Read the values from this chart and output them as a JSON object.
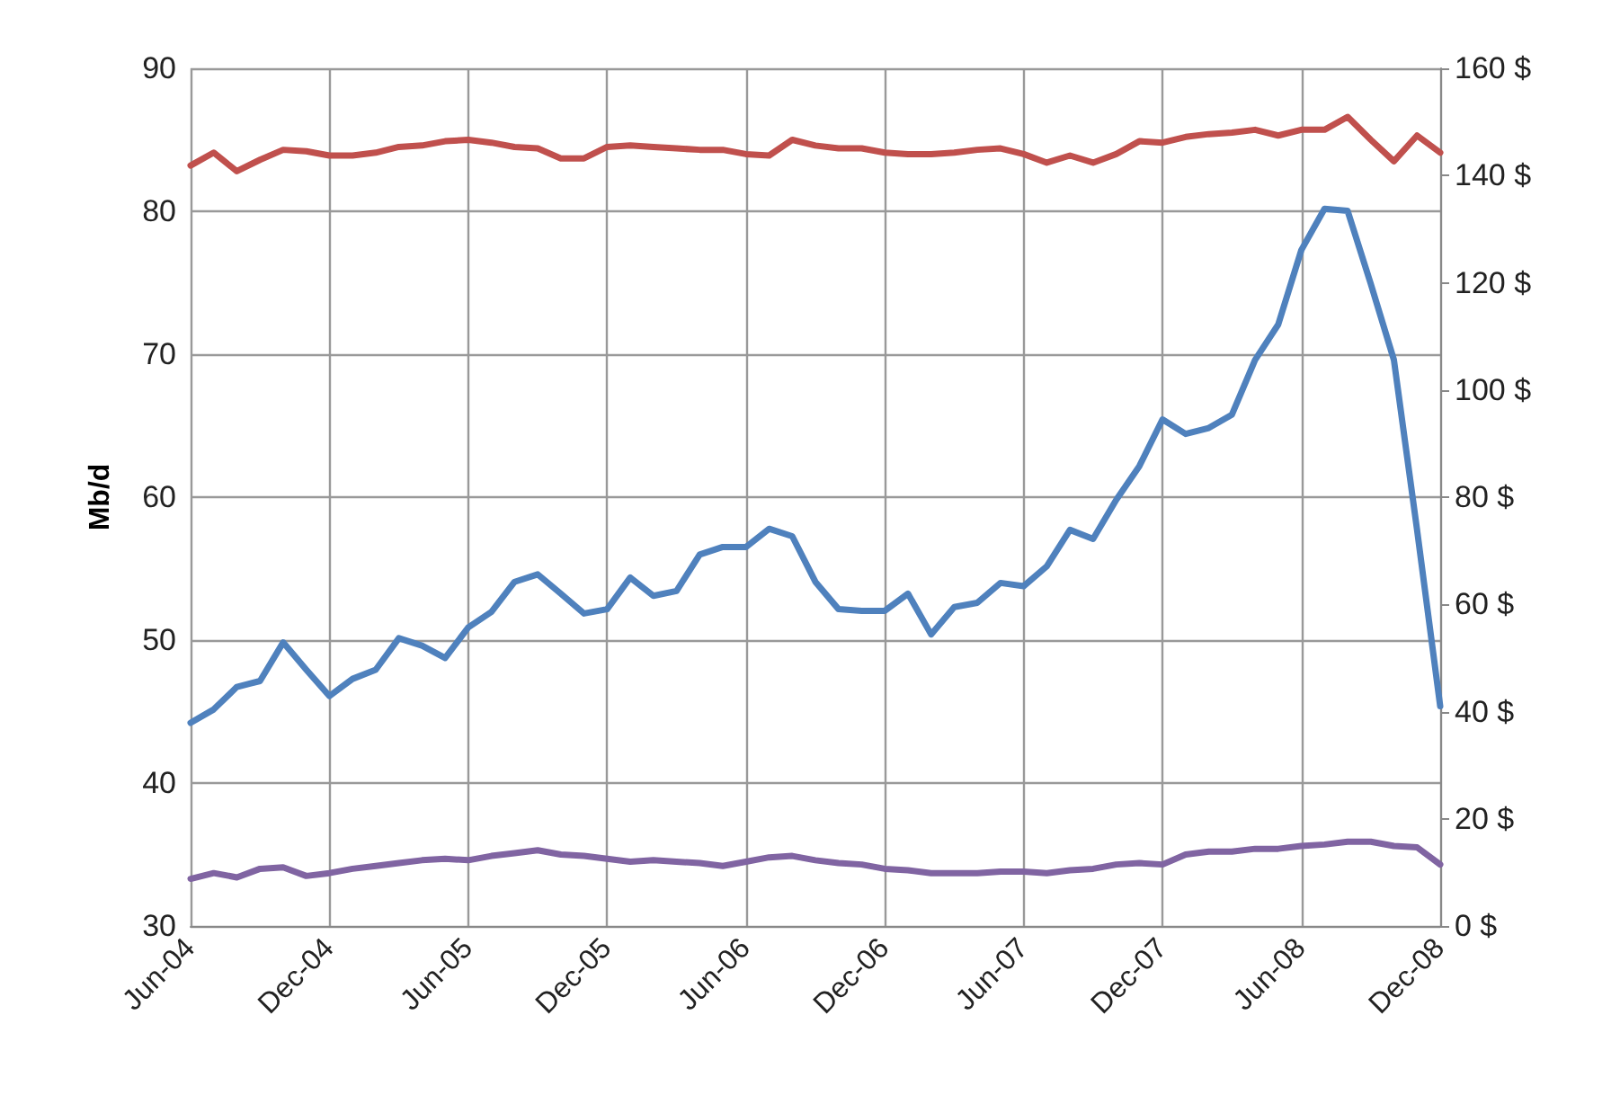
{
  "chart_data": {
    "type": "line",
    "categories": [
      "Jun-04",
      null,
      null,
      null,
      null,
      null,
      "Dec-04",
      null,
      null,
      null,
      null,
      null,
      "Jun-05",
      null,
      null,
      null,
      null,
      null,
      "Dec-05",
      null,
      null,
      null,
      null,
      null,
      "Jun-06",
      null,
      null,
      null,
      null,
      null,
      "Dec-06",
      null,
      null,
      null,
      null,
      null,
      "Jun-07",
      null,
      null,
      null,
      null,
      null,
      "Dec-07",
      null,
      null,
      null,
      null,
      null,
      "Jun-08",
      null,
      null,
      null,
      null,
      null,
      "Dec-08"
    ],
    "ylabel": "Mb/d",
    "ylim": [
      30,
      90
    ],
    "yticks": [
      30,
      40,
      50,
      60,
      70,
      80,
      90
    ],
    "y2lim": [
      0,
      160
    ],
    "y2ticks": [
      {
        "value": 0,
        "label": "0 $"
      },
      {
        "value": 20,
        "label": "20 $"
      },
      {
        "value": 40,
        "label": "40 $"
      },
      {
        "value": 60,
        "label": "60 $"
      },
      {
        "value": 80,
        "label": "80 $"
      },
      {
        "value": 100,
        "label": "100 $"
      },
      {
        "value": 120,
        "label": "120 $"
      },
      {
        "value": 140,
        "label": "140 $"
      },
      {
        "value": 160,
        "label": "160 $"
      }
    ],
    "grid": true,
    "marker": "none",
    "line_style": "solid",
    "series": [
      {
        "color": "#c0504d",
        "values": [
          83.2,
          84.1,
          82.8,
          83.6,
          84.3,
          84.2,
          83.9,
          83.9,
          84.1,
          84.5,
          84.6,
          84.9,
          85.0,
          84.8,
          84.5,
          84.4,
          83.7,
          83.7,
          84.5,
          84.6,
          84.5,
          84.4,
          84.3,
          84.3,
          84.0,
          83.9,
          85.0,
          84.6,
          84.4,
          84.4,
          84.1,
          84.0,
          84.0,
          84.1,
          84.3,
          84.4,
          84.0,
          83.4,
          83.9,
          83.4,
          84.0,
          84.9,
          84.8,
          85.2,
          85.4,
          85.5,
          85.7,
          85.3,
          85.7,
          85.7,
          86.6,
          85.0,
          83.5,
          85.3,
          84.1
        ]
      },
      {
        "color": "#4f81bd",
        "axis": "y2",
        "values": [
          37.9,
          40.4,
          44.6,
          45.7,
          52.9,
          47.8,
          42.9,
          46.1,
          47.8,
          53.7,
          52.3,
          50.0,
          55.7,
          58.6,
          64.2,
          65.6,
          62.0,
          58.3,
          59.1,
          65.0,
          61.6,
          62.5,
          69.3,
          70.7,
          70.7,
          74.1,
          72.7,
          64.2,
          59.1,
          58.8,
          58.8,
          62.0,
          54.4,
          59.5,
          60.3,
          64.0,
          63.4,
          67.1,
          73.9,
          72.2,
          79.5,
          85.8,
          94.5,
          91.8,
          92.9,
          95.4,
          105.6,
          112.2,
          126.1,
          133.8,
          133.4,
          119.8,
          105.6,
          73.9,
          41.0
        ]
      },
      {
        "color": "#8064a2",
        "values": [
          33.3,
          33.7,
          33.4,
          34.0,
          34.1,
          33.5,
          33.7,
          34.0,
          34.2,
          34.4,
          34.6,
          34.7,
          34.6,
          34.9,
          35.1,
          35.3,
          35.0,
          34.9,
          34.7,
          34.5,
          34.6,
          34.5,
          34.4,
          34.2,
          34.5,
          34.8,
          34.9,
          34.6,
          34.4,
          34.3,
          34.0,
          33.9,
          33.7,
          33.7,
          33.7,
          33.8,
          33.8,
          33.7,
          33.9,
          34.0,
          34.3,
          34.4,
          34.3,
          35.0,
          35.2,
          35.2,
          35.4,
          35.4,
          35.6,
          35.7,
          35.9,
          35.9,
          35.6,
          35.5,
          34.3
        ]
      }
    ]
  }
}
